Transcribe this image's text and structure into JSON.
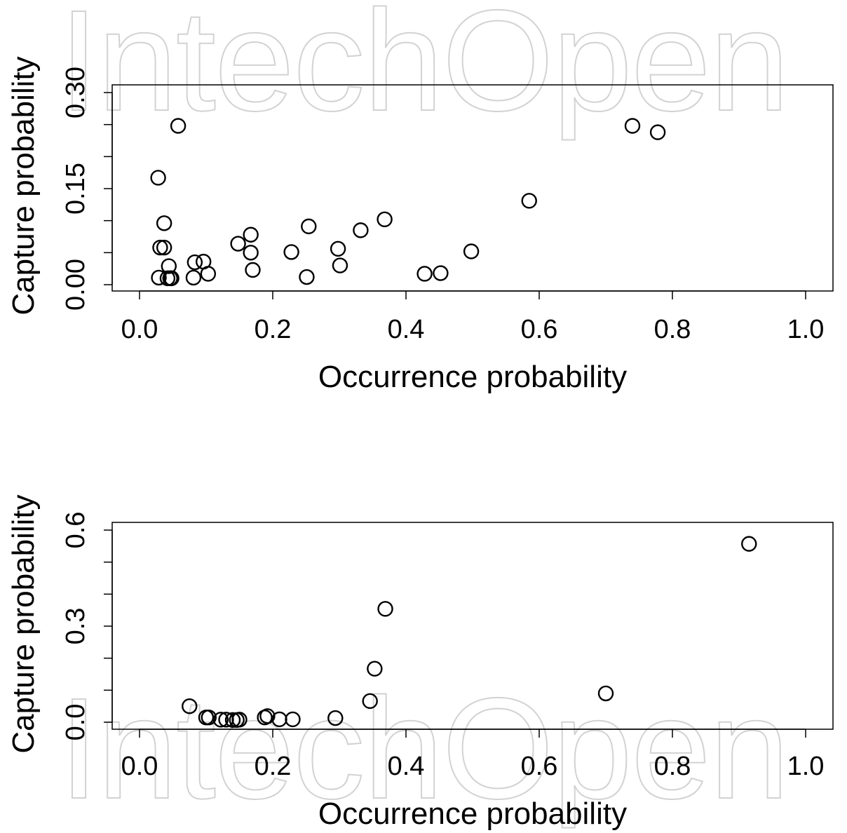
{
  "watermark": "IntechOpen",
  "chart_data": [
    {
      "type": "scatter",
      "xlabel": "Occurrence probability",
      "ylabel": "Capture probability",
      "xlim": [
        0.0,
        1.0
      ],
      "ylim": [
        0.0,
        0.3
      ],
      "xticks": [
        "0.0",
        "0.2",
        "0.4",
        "0.6",
        "0.8",
        "1.0"
      ],
      "yticks": [
        "0.00",
        "0.15",
        "0.30"
      ],
      "ytick_values": [
        0.0,
        0.15,
        0.3
      ],
      "ytick_minor": [
        0.05,
        0.1,
        0.2,
        0.25
      ],
      "grid": false,
      "marker": "open-circle",
      "points": [
        [
          0.058,
          0.248
        ],
        [
          0.028,
          0.167
        ],
        [
          0.037,
          0.096
        ],
        [
          0.031,
          0.058
        ],
        [
          0.037,
          0.058
        ],
        [
          0.044,
          0.029
        ],
        [
          0.029,
          0.011
        ],
        [
          0.042,
          0.01
        ],
        [
          0.046,
          0.01
        ],
        [
          0.048,
          0.01
        ],
        [
          0.083,
          0.035
        ],
        [
          0.081,
          0.011
        ],
        [
          0.096,
          0.036
        ],
        [
          0.103,
          0.017
        ],
        [
          0.148,
          0.064
        ],
        [
          0.167,
          0.078
        ],
        [
          0.167,
          0.05
        ],
        [
          0.17,
          0.023
        ],
        [
          0.228,
          0.051
        ],
        [
          0.254,
          0.091
        ],
        [
          0.251,
          0.012
        ],
        [
          0.298,
          0.056
        ],
        [
          0.301,
          0.03
        ],
        [
          0.332,
          0.085
        ],
        [
          0.368,
          0.102
        ],
        [
          0.428,
          0.017
        ],
        [
          0.452,
          0.018
        ],
        [
          0.498,
          0.052
        ],
        [
          0.585,
          0.131
        ],
        [
          0.74,
          0.248
        ],
        [
          0.778,
          0.238
        ]
      ]
    },
    {
      "type": "scatter",
      "xlabel": "Occurrence probability",
      "ylabel": "Capture probability",
      "xlim": [
        0.0,
        1.0
      ],
      "ylim": [
        0.0,
        0.6
      ],
      "xticks": [
        "0.0",
        "0.2",
        "0.4",
        "0.6",
        "0.8",
        "1.0"
      ],
      "yticks": [
        "0.0",
        "0.3",
        "0.6"
      ],
      "ytick_values": [
        0.0,
        0.3,
        0.6
      ],
      "ytick_minor": [
        0.1,
        0.2,
        0.4,
        0.5
      ],
      "grid": false,
      "marker": "open-circle",
      "points": [
        [
          0.075,
          0.05
        ],
        [
          0.1,
          0.015
        ],
        [
          0.104,
          0.015
        ],
        [
          0.122,
          0.008
        ],
        [
          0.13,
          0.008
        ],
        [
          0.14,
          0.007
        ],
        [
          0.146,
          0.007
        ],
        [
          0.15,
          0.008
        ],
        [
          0.188,
          0.015
        ],
        [
          0.192,
          0.019
        ],
        [
          0.21,
          0.009
        ],
        [
          0.23,
          0.009
        ],
        [
          0.294,
          0.013
        ],
        [
          0.346,
          0.066
        ],
        [
          0.353,
          0.167
        ],
        [
          0.369,
          0.354
        ],
        [
          0.7,
          0.09
        ],
        [
          0.915,
          0.557
        ]
      ]
    }
  ]
}
